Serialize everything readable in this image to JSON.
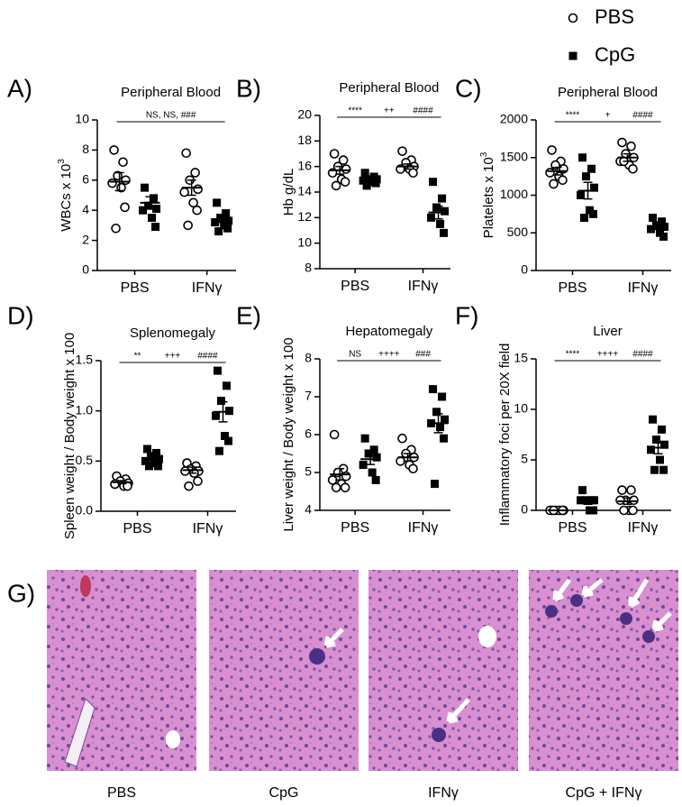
{
  "legend": [
    {
      "name": "PBS",
      "marker": "circle",
      "color": "#000000"
    },
    {
      "name": "CpG",
      "marker": "square",
      "color": "#000000"
    }
  ],
  "chart_data": [
    {
      "type": "scatter",
      "label": "A)",
      "title": "Peripheral Blood",
      "ylabel": "WBCs x 10",
      "ylabel_sup": "3",
      "categories": [
        "PBS",
        "IFNγ"
      ],
      "ylim": [
        0,
        10
      ],
      "yticks": [
        0,
        2,
        4,
        6,
        8,
        10
      ],
      "annotations": [
        "NS, NS, ###"
      ],
      "series": [
        {
          "values": [
            [
              8.0,
              7.2,
              6.3,
              6.0,
              5.8,
              5.5,
              4.2,
              2.8
            ],
            [
              7.8,
              6.5,
              6.0,
              5.4,
              5.2,
              4.5,
              4.0,
              3.0
            ]
          ],
          "mean": [
            5.9,
            5.5
          ],
          "sem": [
            0.6,
            0.5
          ]
        },
        {
          "values": [
            [
              5.5,
              4.8,
              4.3,
              4.1,
              4.0,
              3.5,
              2.9
            ],
            [
              4.5,
              3.8,
              3.5,
              3.3,
              3.2,
              3.0,
              2.8,
              2.6
            ]
          ],
          "mean": [
            4.5,
            3.4
          ],
          "sem": [
            0.4,
            0.2
          ]
        }
      ]
    },
    {
      "type": "scatter",
      "label": "B)",
      "title": "Peripheral Blood",
      "ylabel": "Hb g/dL",
      "categories": [
        "PBS",
        "IFNγ"
      ],
      "ylim": [
        8,
        20
      ],
      "yticks": [
        8,
        10,
        12,
        14,
        16,
        18,
        20
      ],
      "annotations": [
        "****",
        "++",
        "####"
      ],
      "series": [
        {
          "values": [
            [
              17.0,
              16.5,
              16.0,
              15.8,
              15.5,
              15.0,
              14.8,
              14.5
            ],
            [
              17.2,
              16.5,
              16.3,
              16.0,
              15.8,
              15.8,
              15.5
            ]
          ],
          "mean": [
            15.7,
            16.0
          ],
          "sem": [
            0.3,
            0.2
          ]
        },
        {
          "values": [
            [
              15.5,
              15.2,
              15.0,
              15.0,
              14.9,
              14.8,
              14.7,
              14.5
            ],
            [
              14.8,
              13.5,
              12.8,
              12.5,
              12.0,
              11.5,
              10.8
            ]
          ],
          "mean": [
            14.9,
            12.4
          ],
          "sem": [
            0.1,
            0.5
          ]
        }
      ]
    },
    {
      "type": "scatter",
      "label": "C)",
      "title": "Peripheral Blood",
      "ylabel": "Platelets x 10",
      "ylabel_sup": "3",
      "categories": [
        "PBS",
        "IFNγ"
      ],
      "ylim": [
        0,
        2000
      ],
      "yticks": [
        0,
        500,
        1000,
        1500,
        2000
      ],
      "annotations": [
        "****",
        "+",
        "####"
      ],
      "series": [
        {
          "values": [
            [
              1600,
              1450,
              1400,
              1350,
              1300,
              1250,
              1200,
              1150
            ],
            [
              1700,
              1650,
              1550,
              1500,
              1450,
              1400,
              1350,
              1450
            ]
          ],
          "mean": [
            1320,
            1500
          ],
          "sem": [
            50,
            50
          ]
        },
        {
          "values": [
            [
              1500,
              1350,
              1250,
              1100,
              1000,
              800,
              750,
              700
            ],
            [
              700,
              650,
              600,
              580,
              550,
              500,
              450
            ]
          ],
          "mean": [
            1060,
            580
          ],
          "sem": [
            110,
            35
          ]
        }
      ]
    },
    {
      "type": "scatter",
      "label": "D)",
      "title": "Splenomegaly",
      "ylabel": "Spleen weight / Body weight x 100",
      "categories": [
        "PBS",
        "IFNγ"
      ],
      "ylim": [
        0,
        1.5
      ],
      "yticks": [
        {
          "value": 0,
          "label": "0.0"
        },
        0.5,
        {
          "value": 1,
          "label": "1.0"
        },
        1.5
      ],
      "annotations": [
        "**",
        "+++",
        "####"
      ],
      "series": [
        {
          "values": [
            [
              0.35,
              0.32,
              0.3,
              0.28,
              0.27,
              0.25,
              0.25
            ],
            [
              0.48,
              0.45,
              0.42,
              0.4,
              0.4,
              0.38,
              0.3,
              0.25
            ]
          ],
          "mean": [
            0.29,
            0.41
          ],
          "sem": [
            0.015,
            0.03
          ]
        },
        {
          "values": [
            [
              0.62,
              0.58,
              0.55,
              0.52,
              0.5,
              0.48,
              0.45,
              0.45
            ],
            [
              1.4,
              1.25,
              1.1,
              1.0,
              0.95,
              0.75,
              0.7,
              0.6
            ]
          ],
          "mean": [
            0.52,
            0.99
          ],
          "sem": [
            0.02,
            0.1
          ]
        }
      ]
    },
    {
      "type": "scatter",
      "label": "E)",
      "title": "Hepatomegaly",
      "ylabel": "Liver weight / Body weight x 100",
      "categories": [
        "PBS",
        "IFNγ"
      ],
      "ylim": [
        4,
        8
      ],
      "yticks": [
        4,
        5,
        6,
        7,
        8
      ],
      "annotations": [
        "NS",
        "++++",
        "###"
      ],
      "series": [
        {
          "values": [
            [
              6.0,
              5.1,
              5.0,
              4.9,
              4.8,
              4.7,
              4.6,
              4.6
            ],
            [
              5.9,
              5.6,
              5.5,
              5.4,
              5.3,
              5.2,
              5.1
            ]
          ],
          "mean": [
            4.95,
            5.4
          ],
          "sem": [
            0.15,
            0.1
          ]
        },
        {
          "values": [
            [
              5.9,
              5.6,
              5.5,
              5.4,
              5.2,
              5.0,
              4.8
            ],
            [
              7.2,
              7.0,
              6.6,
              6.4,
              6.3,
              6.2,
              5.9,
              4.7
            ]
          ],
          "mean": [
            5.35,
            6.3
          ],
          "sem": [
            0.14,
            0.25
          ]
        }
      ]
    },
    {
      "type": "scatter",
      "label": "F)",
      "title": "Liver",
      "ylabel": "Inflammatory foci per 20X field",
      "categories": [
        "PBS",
        "IFNγ"
      ],
      "ylim": [
        0,
        15
      ],
      "yticks": [
        0,
        5,
        10,
        15
      ],
      "annotations": [
        "****",
        "++++",
        "####"
      ],
      "series": [
        {
          "values": [
            [
              0,
              0,
              0,
              0,
              0,
              0,
              0,
              0
            ],
            [
              2,
              2,
              1,
              1,
              1,
              0,
              0,
              0
            ]
          ],
          "mean": [
            0,
            0.9
          ],
          "sem": [
            0,
            0.3
          ]
        },
        {
          "values": [
            [
              2,
              1,
              1,
              1,
              1,
              0,
              0
            ],
            [
              9,
              8,
              7,
              6.5,
              6,
              5,
              4,
              4
            ]
          ],
          "mean": [
            0.9,
            6.2
          ],
          "sem": [
            0.3,
            0.6
          ]
        }
      ]
    }
  ],
  "histology": {
    "label": "G)",
    "captions": [
      "PBS",
      "CpG",
      "IFNγ",
      "CpG + IFNγ"
    ]
  }
}
